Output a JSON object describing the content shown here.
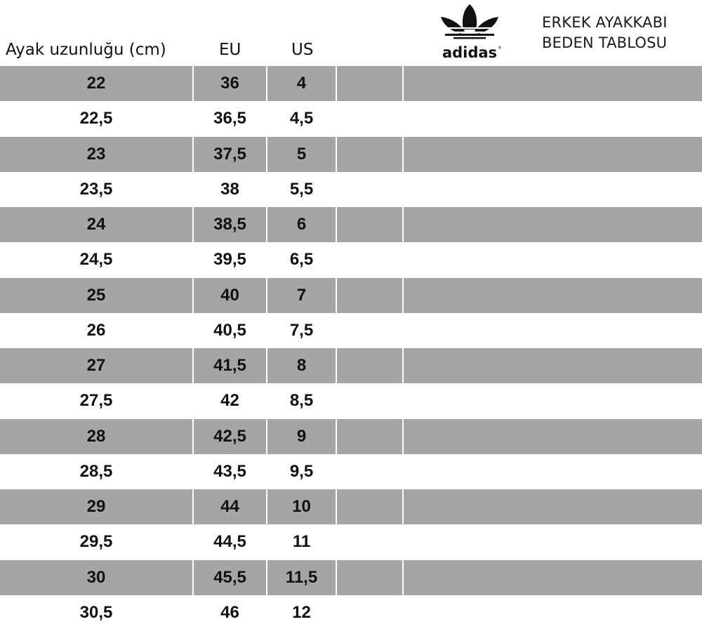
{
  "title": {
    "line1": "ERKEK AYAKKABI",
    "line2": "BEDEN TABLOSU"
  },
  "brand": {
    "name": "adidas",
    "mark": "®"
  },
  "headers": {
    "foot_length": "Ayak uzunluğu (cm)",
    "eu": "EU",
    "us": "US"
  },
  "colors": {
    "stripe": "#a6a4a6",
    "text": "#111111"
  },
  "rows": [
    {
      "cm": "22",
      "eu": "36",
      "us": "4"
    },
    {
      "cm": "22,5",
      "eu": "36,5",
      "us": "4,5"
    },
    {
      "cm": "23",
      "eu": "37,5",
      "us": "5"
    },
    {
      "cm": "23,5",
      "eu": "38",
      "us": "5,5"
    },
    {
      "cm": "24",
      "eu": "38,5",
      "us": "6"
    },
    {
      "cm": "24,5",
      "eu": "39,5",
      "us": "6,5"
    },
    {
      "cm": "25",
      "eu": "40",
      "us": "7"
    },
    {
      "cm": "26",
      "eu": "40,5",
      "us": "7,5"
    },
    {
      "cm": "27",
      "eu": "41,5",
      "us": "8"
    },
    {
      "cm": "27,5",
      "eu": "42",
      "us": "8,5"
    },
    {
      "cm": "28",
      "eu": "42,5",
      "us": "9"
    },
    {
      "cm": "28,5",
      "eu": "43,5",
      "us": "9,5"
    },
    {
      "cm": "29",
      "eu": "44",
      "us": "10"
    },
    {
      "cm": "29,5",
      "eu": "44,5",
      "us": "11"
    },
    {
      "cm": "30",
      "eu": "45,5",
      "us": "11,5"
    },
    {
      "cm": "30,5",
      "eu": "46",
      "us": "12"
    }
  ]
}
